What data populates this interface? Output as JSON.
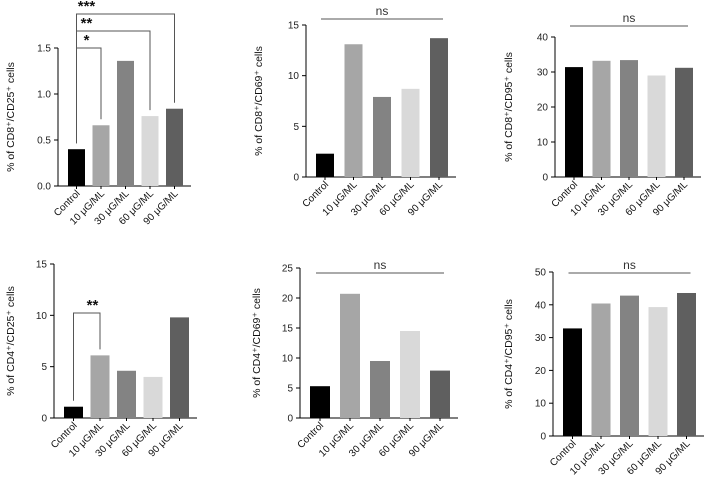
{
  "colors": [
    "#000000",
    "#a6a6a6",
    "#838383",
    "#d9d9d9",
    "#5f5f5f"
  ],
  "chart_data": [
    {
      "type": "bar",
      "ylabel": "% of CD8⁺/CD25⁺ cells",
      "categories": [
        "Control",
        "10 μG/ML",
        "30 μG/ML",
        "60 μG/ML",
        "90 μG/ML"
      ],
      "values": [
        0.4,
        0.66,
        1.36,
        0.76,
        0.84
      ],
      "ylim": [
        0,
        1.5
      ],
      "yticks": [
        "0.0",
        "0.5",
        "1.0",
        "1.5"
      ],
      "annotations": [
        {
          "from": 0,
          "to": 1,
          "label": "*"
        },
        {
          "from": 0,
          "to": 3,
          "label": "**"
        },
        {
          "from": 0,
          "to": 4,
          "label": "***"
        }
      ]
    },
    {
      "type": "bar",
      "ylabel": "% of CD8⁺/CD69⁺ cells",
      "categories": [
        "Control",
        "10 μG/ML",
        "30 μG/ML",
        "60 μG/ML",
        "90 μG/ML"
      ],
      "values": [
        2.3,
        13.1,
        7.9,
        8.7,
        13.7
      ],
      "ylim": [
        0,
        15
      ],
      "yticks": [
        "0",
        "5",
        "10",
        "15"
      ],
      "annotations": [
        {
          "label": "ns"
        }
      ]
    },
    {
      "type": "bar",
      "ylabel": "% of CD8⁺/CD95⁺ cells",
      "categories": [
        "Control",
        "10 μG/ML",
        "30 μG/ML",
        "60 μG/ML",
        "90 μG/ML"
      ],
      "values": [
        31.4,
        33.2,
        33.4,
        29.0,
        31.2
      ],
      "ylim": [
        0,
        40
      ],
      "yticks": [
        "0",
        "10",
        "20",
        "30",
        "40"
      ],
      "annotations": [
        {
          "label": "ns"
        }
      ]
    },
    {
      "type": "bar",
      "ylabel": "% of CD4⁺/CD25⁺ cells",
      "categories": [
        "Control",
        "10 μG/ML",
        "30 μG/ML",
        "60 μG/ML",
        "90 μG/ML"
      ],
      "values": [
        1.1,
        6.1,
        4.6,
        4.0,
        9.8
      ],
      "ylim": [
        0,
        15
      ],
      "yticks": [
        "0",
        "5",
        "10",
        "15"
      ],
      "annotations": [
        {
          "from": 0,
          "to": 1,
          "label": "**"
        }
      ]
    },
    {
      "type": "bar",
      "ylabel": "% of CD4⁺/CD69⁺ cells",
      "categories": [
        "Control",
        "10 μG/ML",
        "30 μG/ML",
        "60 μG/ML",
        "90 μG/ML"
      ],
      "values": [
        5.3,
        20.7,
        9.5,
        14.5,
        7.9
      ],
      "ylim": [
        0,
        25
      ],
      "yticks": [
        "0",
        "5",
        "10",
        "15",
        "20",
        "25"
      ],
      "annotations": [
        {
          "label": "ns"
        }
      ]
    },
    {
      "type": "bar",
      "ylabel": "% of CD4⁺/CD95⁺ cells",
      "categories": [
        "Control",
        "10 μG/ML",
        "30 μG/ML",
        "60 μG/ML",
        "90 μG/ML"
      ],
      "values": [
        32.8,
        40.4,
        42.8,
        39.3,
        43.6
      ],
      "ylim": [
        0,
        50
      ],
      "yticks": [
        "0",
        "10",
        "20",
        "30",
        "40",
        "50"
      ],
      "annotations": [
        {
          "label": "ns"
        }
      ]
    }
  ]
}
